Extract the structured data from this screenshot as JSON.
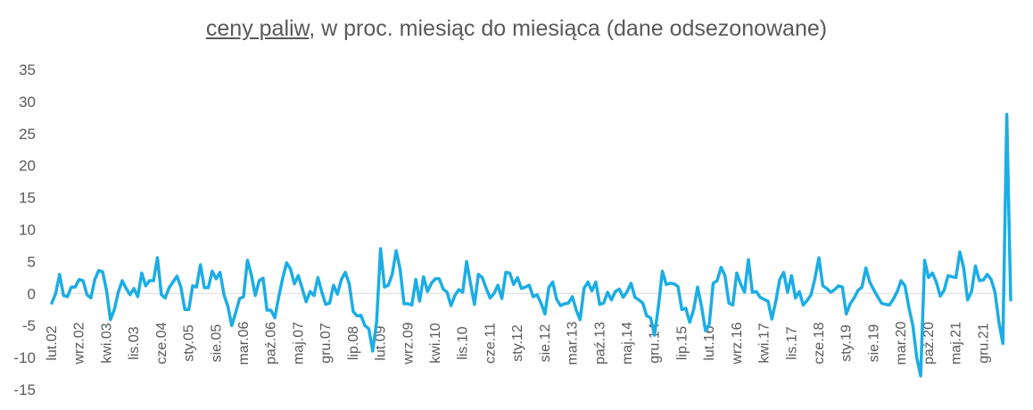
{
  "chart_data": {
    "type": "line",
    "title_underlined": "ceny paliw",
    "title_rest": ", w proc. miesiąc do miesiąca (dane odsezonowane)",
    "xlabel": "",
    "ylabel": "",
    "ylim": [
      -15,
      35
    ],
    "yticks": [
      35,
      30,
      25,
      20,
      15,
      10,
      5,
      0,
      -5,
      -10,
      -15
    ],
    "grid": false,
    "legend": "none",
    "line_color": "#1CADE4",
    "x_tick_labels": [
      "lut.02",
      "wrz.02",
      "kwi.03",
      "lis.03",
      "cze.04",
      "sty.05",
      "sie.05",
      "mar.06",
      "paź.06",
      "maj.07",
      "gru.07",
      "lip.08",
      "lut.09",
      "wrz.09",
      "kwi.10",
      "lis.10",
      "cze.11",
      "sty.12",
      "sie.12",
      "mar.13",
      "paź.13",
      "maj.14",
      "gru.14",
      "lip.15",
      "lut.16",
      "wrz.16",
      "kwi.17",
      "lis.17",
      "cze.18",
      "sty.19",
      "sie.19",
      "mar.20",
      "paź.20",
      "maj.21",
      "gru.21"
    ],
    "series": [
      {
        "values": [
          -1.5,
          0,
          3,
          -0.3,
          -0.5,
          1,
          1,
          2.2,
          2,
          -0.2,
          -0.7,
          2.2,
          3.6,
          3.4,
          0.5,
          -4.1,
          -2.5,
          0.2,
          2,
          0.8,
          -0.2,
          0.8,
          -0.5,
          3.2,
          1.2,
          2,
          2,
          5.6,
          -0.2,
          -0.7,
          0.9,
          1.8,
          2.7,
          1,
          -2.5,
          -2.5,
          1.2,
          1,
          4.5,
          0.9,
          0.9,
          3.5,
          2.3,
          3.3,
          -0.2,
          -2,
          -5,
          -3,
          -0.8,
          -0.5,
          5.2,
          2.9,
          -0.3,
          2,
          2.4,
          -2.6,
          -2.6,
          -3.8,
          -0.5,
          2.4,
          4.8,
          3.8,
          1.5,
          2.8,
          0.8,
          -1.3,
          0.3,
          -0.3,
          2.5,
          0.2,
          -1.7,
          -1.5,
          1.3,
          -0.1,
          2.2,
          3.3,
          1.5,
          -2.8,
          -3.5,
          -3.4,
          -5,
          -5.5,
          -9,
          -4.4,
          7,
          1,
          1.3,
          3,
          6.7,
          3.8,
          -1.6,
          -1.6,
          -1.8,
          2.2,
          -1.2,
          2.6,
          0.3,
          1.6,
          2.3,
          2.3,
          0.7,
          0.2,
          -1.9,
          -0.3,
          0.6,
          0.2,
          5,
          1.5,
          -1.7,
          3,
          2.5,
          0.8,
          -0.7,
          0,
          1.3,
          -0.8,
          3.3,
          3.2,
          1.4,
          2.5,
          0.8,
          1,
          1.3,
          -0.5,
          -0.2,
          -1.5,
          -3.2,
          0.9,
          1.8,
          -0.9,
          -1.9,
          -1.6,
          -1.5,
          -0.5,
          -2.6,
          -4.1,
          0.8,
          1.8,
          0.4,
          1.8,
          -1.7,
          -1.5,
          0.2,
          -1,
          0.3,
          0.7,
          -0.6,
          0.3,
          1.6,
          -0.6,
          -1,
          -1.5,
          -3.5,
          -3.8,
          -6.5,
          -2,
          3.5,
          1.4,
          1.6,
          1.5,
          1.1,
          -2.5,
          -2.3,
          -4.5,
          -2.5,
          1,
          -2,
          -5.8,
          -4.8,
          1.6,
          2,
          4.1,
          2.8,
          -1.5,
          -1.8,
          3.2,
          1.5,
          0.2,
          5.3,
          0.2,
          0.3,
          -0.6,
          -0.9,
          -1.2,
          -4,
          -1.2,
          2.2,
          3.3,
          0.2,
          2.8,
          -0.7,
          0.3,
          -1.8,
          -1.1,
          -0.2,
          2.4,
          5.6,
          1.2,
          0.8,
          0.2,
          0.6,
          1.2,
          1,
          -3.2,
          -1.6,
          -0.7,
          0.5,
          1,
          4,
          1.8,
          0.6,
          -0.5,
          -1.5,
          -1.7,
          -1.8,
          -0.9,
          0.3,
          2,
          1.2,
          -2.2,
          -5,
          -10,
          -12.9,
          5.2,
          2.5,
          3.2,
          1.8,
          -0.4,
          0.5,
          2.8,
          2.6,
          2.5,
          6.5,
          4,
          -1,
          0.3,
          4.3,
          2,
          2.1,
          3,
          2.2,
          0.2,
          -4.5,
          -7.8,
          28,
          -1
        ]
      }
    ]
  }
}
